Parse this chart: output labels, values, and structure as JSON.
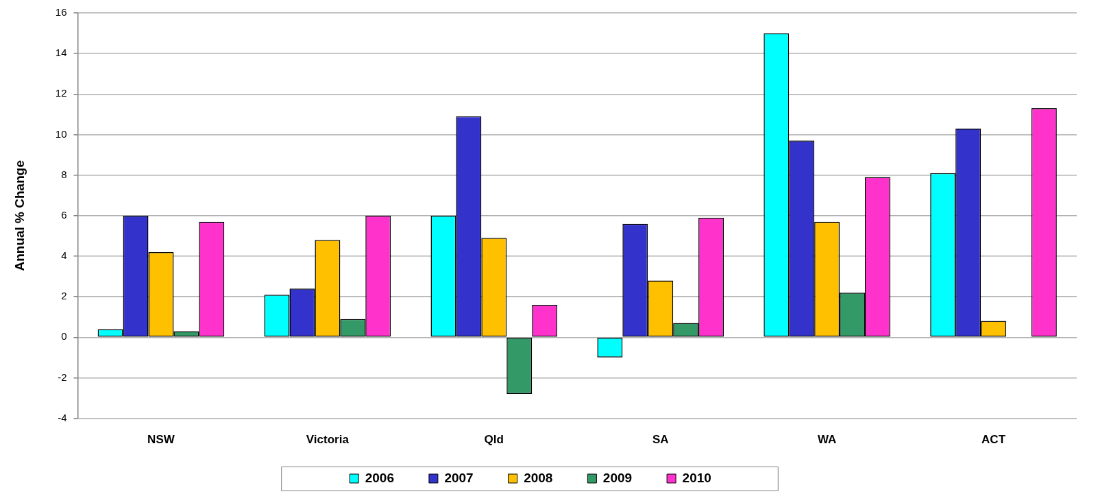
{
  "chart_data": {
    "type": "bar",
    "ylabel": "Annual % Change",
    "categories": [
      "NSW",
      "Victoria",
      "Qld",
      "SA",
      "WA",
      "ACT"
    ],
    "series": [
      {
        "name": "2006",
        "color": "#00ffff",
        "values": [
          0.4,
          2.1,
          6.0,
          -1.0,
          15.0,
          8.1
        ]
      },
      {
        "name": "2007",
        "color": "#3333cc",
        "values": [
          6.0,
          2.4,
          10.9,
          5.6,
          9.7,
          10.3
        ]
      },
      {
        "name": "2008",
        "color": "#ffc000",
        "values": [
          4.2,
          4.8,
          4.9,
          2.8,
          5.7,
          0.8
        ]
      },
      {
        "name": "2009",
        "color": "#339966",
        "values": [
          0.3,
          0.9,
          -2.8,
          0.7,
          2.2,
          null
        ]
      },
      {
        "name": "2010",
        "color": "#ff33cc",
        "values": [
          5.7,
          6.0,
          1.6,
          5.9,
          7.9,
          11.3
        ]
      }
    ],
    "ylim": [
      -4,
      16
    ],
    "yticks": [
      -4,
      -2,
      0,
      2,
      4,
      6,
      8,
      10,
      12,
      14,
      16
    ],
    "grid": "y",
    "legend": "bottom"
  }
}
